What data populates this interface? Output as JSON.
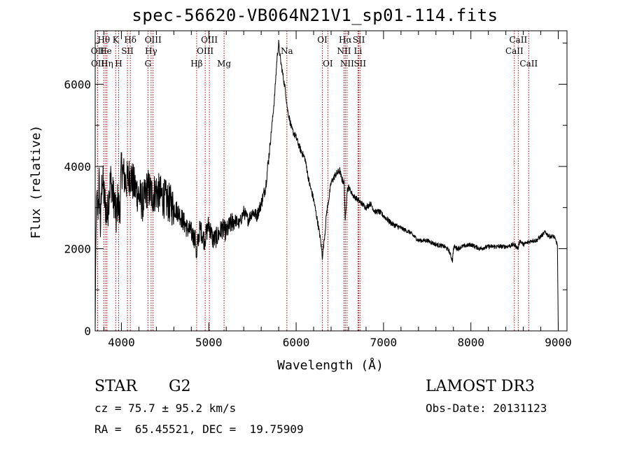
{
  "title": "spec-56620-VB064N21V1_sp01-114.fits",
  "info": {
    "class": "STAR",
    "subclass": "G2",
    "cz": "cz = 75.7 ± 95.2 km/s",
    "radec": "RA =  65.45521, DEC =  19.75909",
    "survey": "LAMOST DR3",
    "obsdate": "Obs-Date: 20131123"
  },
  "chart_data": {
    "type": "line",
    "title": "spec-56620-VB064N21V1_sp01-114.fits",
    "xlabel": "Wavelength (Å)",
    "ylabel": "Flux (relative)",
    "xlim": [
      3700,
      9100
    ],
    "ylim": [
      0,
      7300
    ],
    "xticks": [
      4000,
      5000,
      6000,
      7000,
      8000,
      9000
    ],
    "yticks": [
      0,
      2000,
      4000,
      6000
    ],
    "line_color": "#000000",
    "marker_color": "#b00000",
    "series": [
      {
        "name": "flux",
        "x": [
          3700,
          3705,
          3715,
          3730,
          3745,
          3760,
          3780,
          3800,
          3820,
          3840,
          3860,
          3880,
          3900,
          3920,
          3940,
          3960,
          3980,
          4000,
          4050,
          4100,
          4150,
          4200,
          4250,
          4300,
          4350,
          4400,
          4450,
          4500,
          4550,
          4600,
          4650,
          4700,
          4750,
          4800,
          4850,
          4861,
          4870,
          4900,
          4950,
          5000,
          5050,
          5100,
          5150,
          5200,
          5250,
          5300,
          5350,
          5400,
          5450,
          5500,
          5550,
          5600,
          5650,
          5700,
          5750,
          5780,
          5800,
          5820,
          5850,
          5880,
          5900,
          5950,
          6000,
          6050,
          6100,
          6150,
          6200,
          6250,
          6280,
          6300,
          6330,
          6350,
          6380,
          6400,
          6450,
          6500,
          6520,
          6550,
          6563,
          6580,
          6600,
          6650,
          6700,
          6750,
          6800,
          6850,
          6900,
          6950,
          7000,
          7100,
          7200,
          7300,
          7400,
          7500,
          7600,
          7700,
          7750,
          7790,
          7800,
          7810,
          7850,
          7900,
          8000,
          8100,
          8200,
          8300,
          8400,
          8500,
          8540,
          8560,
          8600,
          8650,
          8700,
          8750,
          8800,
          8850,
          8900,
          8950,
          8990,
          9000
        ],
        "values": [
          0,
          1500,
          3300,
          2900,
          3600,
          2500,
          3800,
          3300,
          3000,
          2800,
          3400,
          3700,
          3300,
          3200,
          2700,
          3200,
          2800,
          4000,
          3600,
          3800,
          3500,
          3300,
          3100,
          3500,
          3300,
          3400,
          3300,
          3200,
          3100,
          3000,
          2900,
          2700,
          2500,
          2400,
          2200,
          1700,
          2100,
          2500,
          2200,
          2600,
          2200,
          2300,
          2500,
          2400,
          2600,
          2700,
          2600,
          2900,
          2700,
          2900,
          2800,
          3100,
          3500,
          4500,
          5600,
          6600,
          7000,
          6600,
          6200,
          5800,
          5400,
          4900,
          4700,
          4400,
          4200,
          3600,
          3200,
          2600,
          2200,
          1800,
          2400,
          2900,
          3300,
          3600,
          3800,
          3900,
          3700,
          3600,
          2600,
          3400,
          3500,
          3300,
          3200,
          3100,
          3000,
          3100,
          2900,
          2900,
          2800,
          2600,
          2500,
          2400,
          2200,
          2200,
          2100,
          2050,
          1950,
          1700,
          2000,
          2050,
          2000,
          2050,
          2100,
          2000,
          2050,
          2050,
          2050,
          2100,
          2000,
          2200,
          2100,
          2150,
          2200,
          2200,
          2300,
          2400,
          2300,
          2300,
          2100,
          0
        ]
      }
    ],
    "line_markers": [
      {
        "label": "Hθ",
        "x": 3798,
        "row": 0
      },
      {
        "label": "OII",
        "x": 3727,
        "row": 1
      },
      {
        "label": "OII",
        "x": 3729,
        "row": 2
      },
      {
        "label": "He",
        "x": 3820,
        "row": 1
      },
      {
        "label": "Hη",
        "x": 3835,
        "row": 2
      },
      {
        "label": "K",
        "x": 3934,
        "row": 0
      },
      {
        "label": "H",
        "x": 3968,
        "row": 2
      },
      {
        "label": "SII",
        "x": 4069,
        "row": 1
      },
      {
        "label": "Hδ",
        "x": 4102,
        "row": 0
      },
      {
        "label": "OIII",
        "x": 4363,
        "row": 0
      },
      {
        "label": "Hγ",
        "x": 4340,
        "row": 1
      },
      {
        "label": "G",
        "x": 4304,
        "row": 2
      },
      {
        "label": "Hβ",
        "x": 4861,
        "row": 2
      },
      {
        "label": "OIII",
        "x": 5007,
        "row": 0
      },
      {
        "label": "OIII",
        "x": 4959,
        "row": 1
      },
      {
        "label": "Mg",
        "x": 5175,
        "row": 2
      },
      {
        "label": "Na",
        "x": 5894,
        "row": 1
      },
      {
        "label": "OI",
        "x": 6300,
        "row": 0
      },
      {
        "label": "OI",
        "x": 6363,
        "row": 2
      },
      {
        "label": "Hα",
        "x": 6563,
        "row": 0
      },
      {
        "label": "NII",
        "x": 6548,
        "row": 1
      },
      {
        "label": "NII",
        "x": 6583,
        "row": 2
      },
      {
        "label": "SII",
        "x": 6717,
        "row": 0
      },
      {
        "label": "Li",
        "x": 6708,
        "row": 1
      },
      {
        "label": "SII",
        "x": 6731,
        "row": 2
      },
      {
        "label": "CaII",
        "x": 8542,
        "row": 0
      },
      {
        "label": "CaII",
        "x": 8498,
        "row": 1
      },
      {
        "label": "CaII",
        "x": 8662,
        "row": 2
      }
    ]
  }
}
